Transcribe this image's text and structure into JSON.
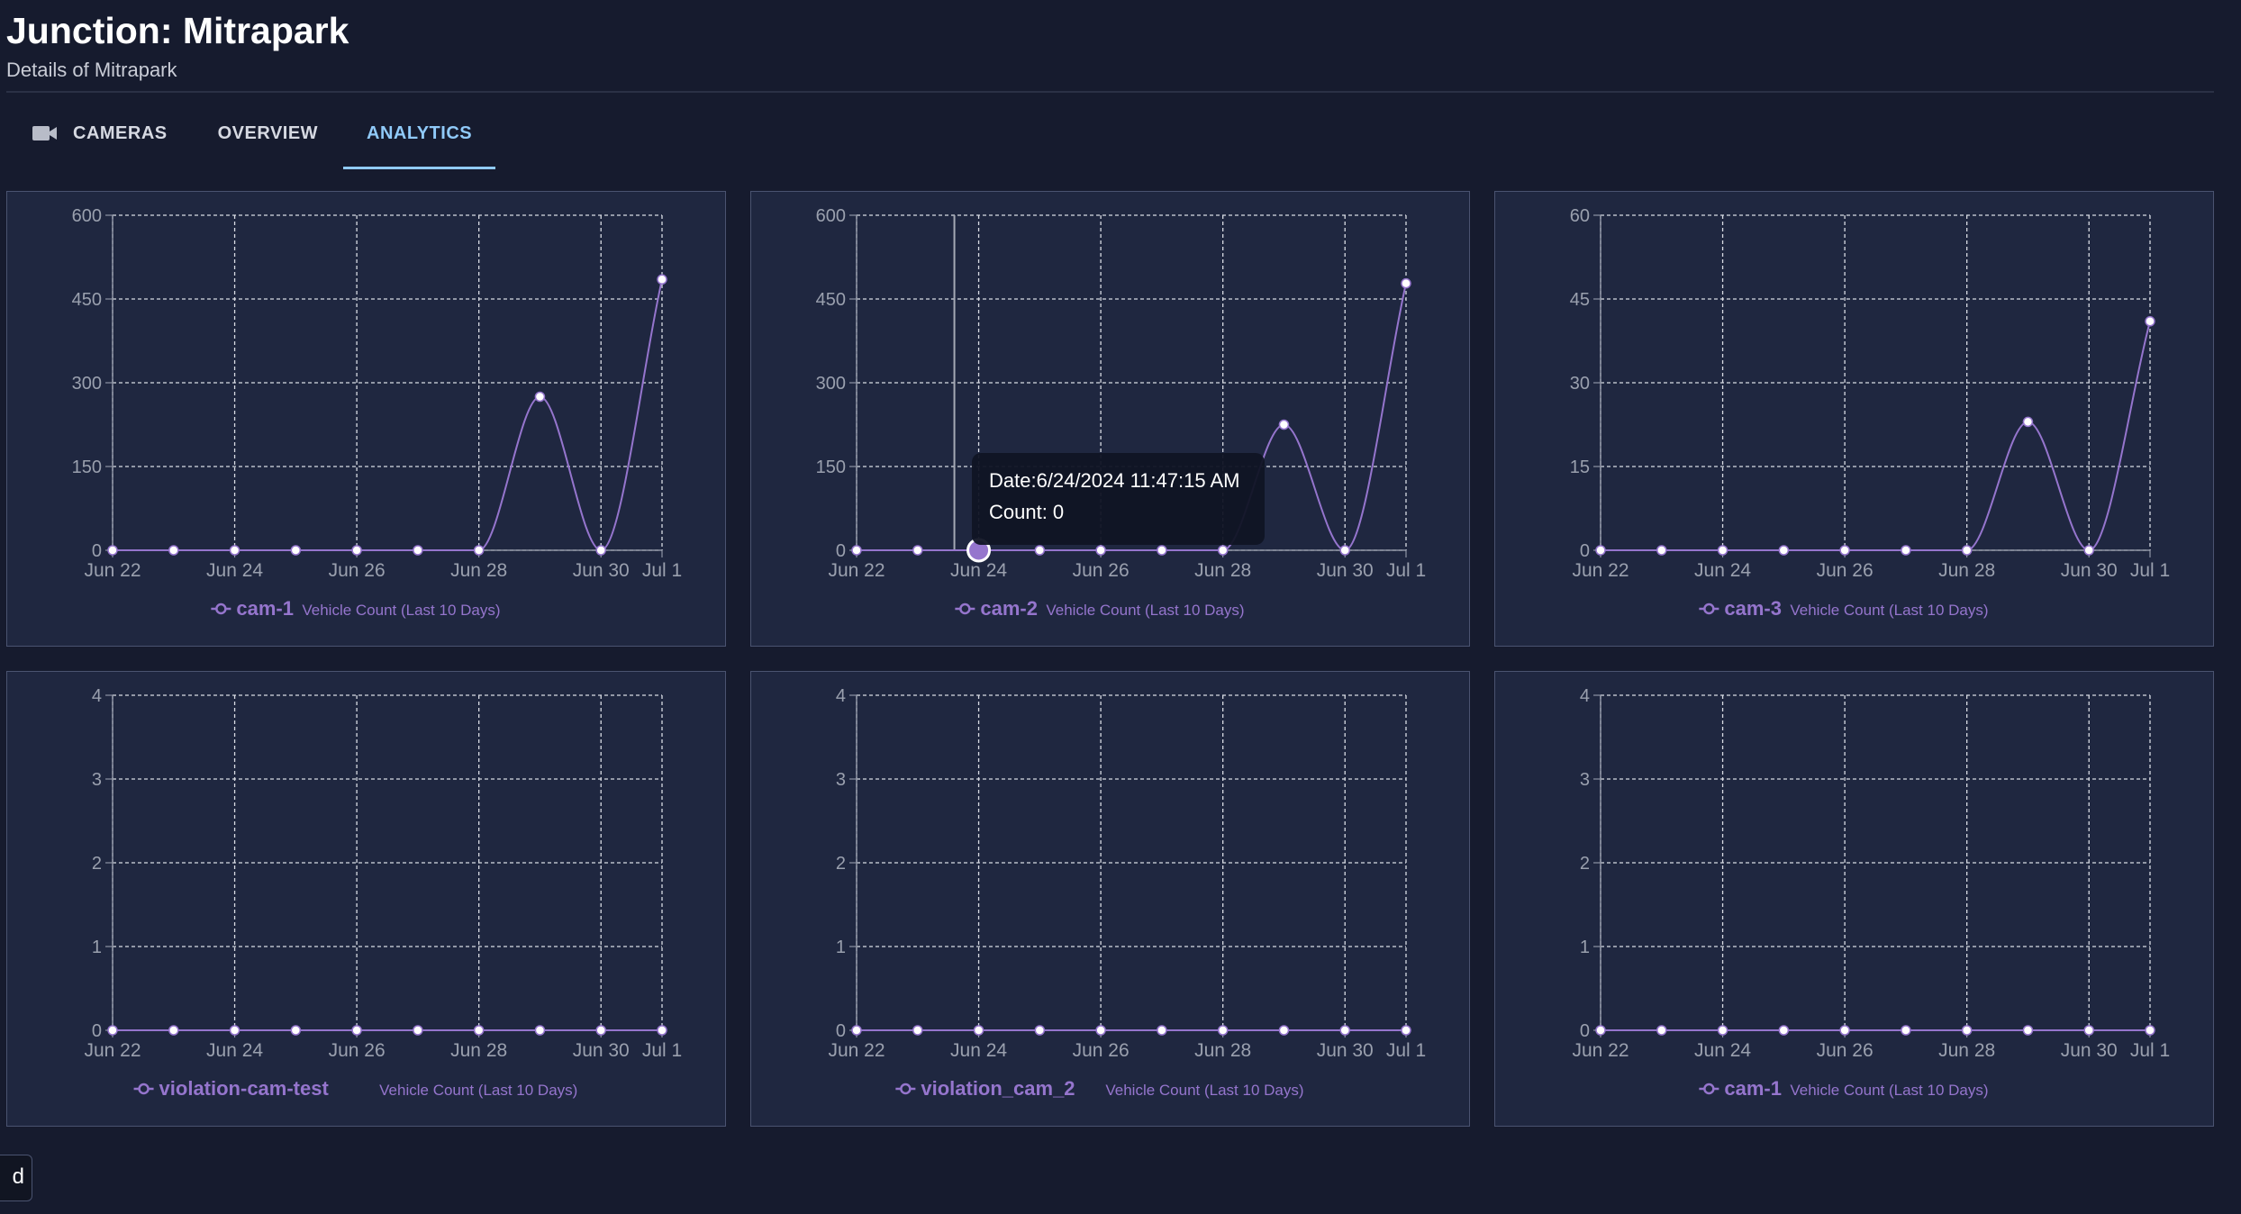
{
  "header": {
    "title": "Junction: Mitrapark",
    "subtitle": "Details of Mitrapark"
  },
  "tabs": [
    {
      "label": "CAMERAS",
      "icon": "videocam-icon",
      "active": false
    },
    {
      "label": "OVERVIEW",
      "active": false
    },
    {
      "label": "ANALYTICS",
      "active": true
    }
  ],
  "bottom_chip": {
    "label": "d"
  },
  "colors": {
    "page_bg": "#161b2e",
    "card_bg": "#1f2740",
    "series_line": "#9575cd",
    "active_tab": "#90caf9",
    "axis_text": "#9aa0ae",
    "grid": "#d8dbe3"
  },
  "chart_data": [
    {
      "type": "line",
      "legend_name": "cam-1",
      "legend_suffix": "Vehicle Count (Last 10 Days)",
      "x": [
        "Jun 22",
        "Jun 23",
        "Jun 24",
        "Jun 25",
        "Jun 26",
        "Jun 27",
        "Jun 28",
        "Jun 29",
        "Jun 30",
        "Jul 1"
      ],
      "x_tick_labels": [
        "Jun 22",
        "Jun 24",
        "Jun 26",
        "Jun 28",
        "Jun 30",
        "Jul 1"
      ],
      "series": [
        {
          "name": "cam-1",
          "values": [
            0,
            0,
            0,
            0,
            0,
            0,
            0,
            275,
            0,
            485
          ]
        }
      ],
      "ylim": [
        0,
        600
      ],
      "yticks": [
        0,
        150,
        300,
        450,
        600
      ],
      "grid": true,
      "legend_position": "bottom"
    },
    {
      "type": "line",
      "legend_name": "cam-2",
      "legend_suffix": "Vehicle Count (Last 10 Days)",
      "x": [
        "Jun 22",
        "Jun 23",
        "Jun 24",
        "Jun 25",
        "Jun 26",
        "Jun 27",
        "Jun 28",
        "Jun 29",
        "Jun 30",
        "Jul 1"
      ],
      "x_tick_labels": [
        "Jun 22",
        "Jun 24",
        "Jun 26",
        "Jun 28",
        "Jun 30",
        "Jul 1"
      ],
      "series": [
        {
          "name": "cam-2",
          "values": [
            0,
            0,
            0,
            0,
            0,
            0,
            0,
            225,
            0,
            478
          ]
        }
      ],
      "ylim": [
        0,
        600
      ],
      "yticks": [
        0,
        150,
        300,
        450,
        600
      ],
      "grid": true,
      "legend_position": "bottom",
      "tooltip": {
        "index": 2,
        "date_line": "Date:6/24/2024 11:47:15 AM",
        "count_line": "Count: 0"
      }
    },
    {
      "type": "line",
      "legend_name": "cam-3",
      "legend_suffix": "Vehicle Count (Last 10 Days)",
      "x": [
        "Jun 22",
        "Jun 23",
        "Jun 24",
        "Jun 25",
        "Jun 26",
        "Jun 27",
        "Jun 28",
        "Jun 29",
        "Jun 30",
        "Jul 1"
      ],
      "x_tick_labels": [
        "Jun 22",
        "Jun 24",
        "Jun 26",
        "Jun 28",
        "Jun 30",
        "Jul 1"
      ],
      "series": [
        {
          "name": "cam-3",
          "values": [
            0,
            0,
            0,
            0,
            0,
            0,
            0,
            23,
            0,
            41
          ]
        }
      ],
      "ylim": [
        0,
        60
      ],
      "yticks": [
        0,
        15,
        30,
        45,
        60
      ],
      "grid": true,
      "legend_position": "bottom"
    },
    {
      "type": "line",
      "legend_name": "violation-cam-test",
      "legend_suffix": "Vehicle Count (Last 10 Days)",
      "x": [
        "Jun 22",
        "Jun 23",
        "Jun 24",
        "Jun 25",
        "Jun 26",
        "Jun 27",
        "Jun 28",
        "Jun 29",
        "Jun 30",
        "Jul 1"
      ],
      "x_tick_labels": [
        "Jun 22",
        "Jun 24",
        "Jun 26",
        "Jun 28",
        "Jun 30",
        "Jul 1"
      ],
      "series": [
        {
          "name": "violation-cam-test",
          "values": [
            0,
            0,
            0,
            0,
            0,
            0,
            0,
            0,
            0,
            0
          ]
        }
      ],
      "ylim": [
        0,
        4
      ],
      "yticks": [
        0,
        1,
        2,
        3,
        4
      ],
      "grid": true,
      "legend_position": "bottom"
    },
    {
      "type": "line",
      "legend_name": "violation_cam_2",
      "legend_suffix": "Vehicle Count (Last 10 Days)",
      "x": [
        "Jun 22",
        "Jun 23",
        "Jun 24",
        "Jun 25",
        "Jun 26",
        "Jun 27",
        "Jun 28",
        "Jun 29",
        "Jun 30",
        "Jul 1"
      ],
      "x_tick_labels": [
        "Jun 22",
        "Jun 24",
        "Jun 26",
        "Jun 28",
        "Jun 30",
        "Jul 1"
      ],
      "series": [
        {
          "name": "violation_cam_2",
          "values": [
            0,
            0,
            0,
            0,
            0,
            0,
            0,
            0,
            0,
            0
          ]
        }
      ],
      "ylim": [
        0,
        4
      ],
      "yticks": [
        0,
        1,
        2,
        3,
        4
      ],
      "grid": true,
      "legend_position": "bottom"
    },
    {
      "type": "line",
      "legend_name": "cam-1",
      "legend_suffix": "Vehicle Count (Last 10 Days)",
      "x": [
        "Jun 22",
        "Jun 23",
        "Jun 24",
        "Jun 25",
        "Jun 26",
        "Jun 27",
        "Jun 28",
        "Jun 29",
        "Jun 30",
        "Jul 1"
      ],
      "x_tick_labels": [
        "Jun 22",
        "Jun 24",
        "Jun 26",
        "Jun 28",
        "Jun 30",
        "Jul 1"
      ],
      "series": [
        {
          "name": "cam-1",
          "values": [
            0,
            0,
            0,
            0,
            0,
            0,
            0,
            0,
            0,
            0
          ]
        }
      ],
      "ylim": [
        0,
        4
      ],
      "yticks": [
        0,
        1,
        2,
        3,
        4
      ],
      "grid": true,
      "legend_position": "bottom"
    }
  ]
}
